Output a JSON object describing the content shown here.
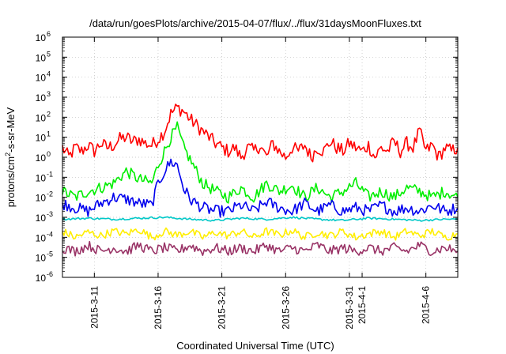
{
  "chart_data": {
    "type": "line",
    "title": "/data/run/goesPlots/archive/2015-04-07/flux/../flux/31daysMoonFluxes.txt",
    "xlabel": "Coordinated Universal Time (UTC)",
    "ylabel": {
      "base": "protons/cm",
      "sup": "2",
      "rest": "-s-sr-MeV"
    },
    "y_scale": "log",
    "ylim": [
      1e-06,
      1000000.0
    ],
    "xlim": [
      "2015-03-08T12:00",
      "2015-04-08T12:00"
    ],
    "grid": true,
    "legend": "none",
    "y_ticks": [
      {
        "value": 1e-06,
        "base": "10",
        "exp": "-6"
      },
      {
        "value": 1e-05,
        "base": "10",
        "exp": "-5"
      },
      {
        "value": 0.0001,
        "base": "10",
        "exp": "-4"
      },
      {
        "value": 0.001,
        "base": "10",
        "exp": "-3"
      },
      {
        "value": 0.01,
        "base": "10",
        "exp": "-2"
      },
      {
        "value": 0.1,
        "base": "10",
        "exp": "-1"
      },
      {
        "value": 1,
        "base": "10",
        "exp": "0"
      },
      {
        "value": 10,
        "base": "10",
        "exp": "1"
      },
      {
        "value": 100,
        "base": "10",
        "exp": "2"
      },
      {
        "value": 1000,
        "base": "10",
        "exp": "3"
      },
      {
        "value": 10000,
        "base": "10",
        "exp": "4"
      },
      {
        "value": 100000,
        "base": "10",
        "exp": "5"
      },
      {
        "value": 1000000,
        "base": "10",
        "exp": "6"
      }
    ],
    "x_ticks": [
      {
        "date": "2015-03-11",
        "label": "2015-3-11"
      },
      {
        "date": "2015-03-16",
        "label": "2015-3-16"
      },
      {
        "date": "2015-03-21",
        "label": "2015-3-21"
      },
      {
        "date": "2015-03-26",
        "label": "2015-3-26"
      },
      {
        "date": "2015-03-31",
        "label": "2015-3-31"
      },
      {
        "date": "2015-04-01",
        "label": "2015-4-1"
      },
      {
        "date": "2015-04-06",
        "label": "2015-4-6"
      }
    ],
    "series": [
      {
        "color": "#ff0000",
        "points": [
          [
            "2015-03-08T12:00",
            3
          ],
          [
            "2015-03-09T00:00",
            1
          ],
          [
            "2015-03-09T12:00",
            3
          ],
          [
            "2015-03-10T00:00",
            2
          ],
          [
            "2015-03-10T12:00",
            4
          ],
          [
            "2015-03-11T00:00",
            2
          ],
          [
            "2015-03-11T12:00",
            5
          ],
          [
            "2015-03-12T00:00",
            3
          ],
          [
            "2015-03-12T12:00",
            4
          ],
          [
            "2015-03-13T00:00",
            8
          ],
          [
            "2015-03-13T12:00",
            10
          ],
          [
            "2015-03-14T00:00",
            6
          ],
          [
            "2015-03-14T12:00",
            8
          ],
          [
            "2015-03-15T00:00",
            5
          ],
          [
            "2015-03-15T12:00",
            4
          ],
          [
            "2015-03-16T00:00",
            8
          ],
          [
            "2015-03-16T12:00",
            20
          ],
          [
            "2015-03-17T00:00",
            150
          ],
          [
            "2015-03-17T12:00",
            300
          ],
          [
            "2015-03-18T00:00",
            200
          ],
          [
            "2015-03-18T12:00",
            80
          ],
          [
            "2015-03-19T00:00",
            40
          ],
          [
            "2015-03-19T12:00",
            20
          ],
          [
            "2015-03-20T00:00",
            10
          ],
          [
            "2015-03-20T12:00",
            5
          ],
          [
            "2015-03-21T00:00",
            3
          ],
          [
            "2015-03-21T12:00",
            2
          ],
          [
            "2015-03-22T00:00",
            3
          ],
          [
            "2015-03-22T12:00",
            1
          ],
          [
            "2015-03-23T00:00",
            3
          ],
          [
            "2015-03-23T12:00",
            2
          ],
          [
            "2015-03-24T00:00",
            4
          ],
          [
            "2015-03-24T12:00",
            1
          ],
          [
            "2015-03-25T00:00",
            5
          ],
          [
            "2015-03-25T12:00",
            2
          ],
          [
            "2015-03-26T00:00",
            1
          ],
          [
            "2015-03-26T12:00",
            3
          ],
          [
            "2015-03-27T00:00",
            2
          ],
          [
            "2015-03-27T12:00",
            4
          ],
          [
            "2015-03-28T00:00",
            1
          ],
          [
            "2015-03-28T12:00",
            3
          ],
          [
            "2015-03-29T00:00",
            2
          ],
          [
            "2015-03-29T12:00",
            6
          ],
          [
            "2015-03-30T00:00",
            3
          ],
          [
            "2015-03-30T12:00",
            2
          ],
          [
            "2015-03-31T00:00",
            5
          ],
          [
            "2015-03-31T12:00",
            3
          ],
          [
            "2015-04-01T00:00",
            2
          ],
          [
            "2015-04-01T12:00",
            4
          ],
          [
            "2015-04-02T00:00",
            1
          ],
          [
            "2015-04-02T12:00",
            3
          ],
          [
            "2015-04-03T00:00",
            2
          ],
          [
            "2015-04-03T12:00",
            6
          ],
          [
            "2015-04-04T00:00",
            2
          ],
          [
            "2015-04-04T12:00",
            5
          ],
          [
            "2015-04-05T00:00",
            3
          ],
          [
            "2015-04-05T12:00",
            20
          ],
          [
            "2015-04-06T00:00",
            2
          ],
          [
            "2015-04-06T12:00",
            4
          ],
          [
            "2015-04-07T00:00",
            1
          ],
          [
            "2015-04-07T12:00",
            3
          ],
          [
            "2015-04-08T00:00",
            2
          ],
          [
            "2015-04-08T12:00",
            3
          ]
        ]
      },
      {
        "color": "#00ee00",
        "points": [
          [
            "2015-03-08T12:00",
            0.02
          ],
          [
            "2015-03-09T12:00",
            0.01
          ],
          [
            "2015-03-10T12:00",
            0.02
          ],
          [
            "2015-03-11T12:00",
            0.03
          ],
          [
            "2015-03-12T12:00",
            0.05
          ],
          [
            "2015-03-13T12:00",
            0.2
          ],
          [
            "2015-03-14T12:00",
            0.08
          ],
          [
            "2015-03-15T12:00",
            0.05
          ],
          [
            "2015-03-16T00:00",
            0.4
          ],
          [
            "2015-03-16T12:00",
            2
          ],
          [
            "2015-03-17T00:00",
            10
          ],
          [
            "2015-03-17T12:00",
            30
          ],
          [
            "2015-03-18T00:00",
            3
          ],
          [
            "2015-03-18T12:00",
            0.8
          ],
          [
            "2015-03-19T00:00",
            0.2
          ],
          [
            "2015-03-19T12:00",
            0.05
          ],
          [
            "2015-03-20T12:00",
            0.02
          ],
          [
            "2015-03-21T12:00",
            0.01
          ],
          [
            "2015-03-22T12:00",
            0.03
          ],
          [
            "2015-03-23T12:00",
            0.01
          ],
          [
            "2015-03-24T12:00",
            0.05
          ],
          [
            "2015-03-25T12:00",
            0.02
          ],
          [
            "2015-03-26T12:00",
            0.04
          ],
          [
            "2015-03-27T12:00",
            0.01
          ],
          [
            "2015-03-28T12:00",
            0.03
          ],
          [
            "2015-03-29T12:00",
            0.01
          ],
          [
            "2015-03-30T12:00",
            0.02
          ],
          [
            "2015-03-31T12:00",
            0.05
          ],
          [
            "2015-04-01T12:00",
            0.01
          ],
          [
            "2015-04-02T12:00",
            0.02
          ],
          [
            "2015-04-03T12:00",
            0.01
          ],
          [
            "2015-04-04T12:00",
            0.03
          ],
          [
            "2015-04-05T12:00",
            0.02
          ],
          [
            "2015-04-06T12:00",
            0.01
          ],
          [
            "2015-04-07T12:00",
            0.02
          ],
          [
            "2015-04-08T12:00",
            0.01
          ]
        ]
      },
      {
        "color": "#0000ee",
        "points": [
          [
            "2015-03-08T12:00",
            0.005
          ],
          [
            "2015-03-09T12:00",
            0.003
          ],
          [
            "2015-03-10T12:00",
            0.002
          ],
          [
            "2015-03-11T12:00",
            0.005
          ],
          [
            "2015-03-12T12:00",
            0.01
          ],
          [
            "2015-03-13T12:00",
            0.008
          ],
          [
            "2015-03-14T12:00",
            0.005
          ],
          [
            "2015-03-15T12:00",
            0.004
          ],
          [
            "2015-03-16T00:00",
            0.05
          ],
          [
            "2015-03-16T12:00",
            0.2
          ],
          [
            "2015-03-17T00:00",
            0.6
          ],
          [
            "2015-03-17T12:00",
            0.4
          ],
          [
            "2015-03-18T00:00",
            0.03
          ],
          [
            "2015-03-18T12:00",
            0.008
          ],
          [
            "2015-03-19T12:00",
            0.003
          ],
          [
            "2015-03-20T12:00",
            0.002
          ],
          [
            "2015-03-21T12:00",
            0.002
          ],
          [
            "2015-03-22T12:00",
            0.004
          ],
          [
            "2015-03-23T12:00",
            0.002
          ],
          [
            "2015-03-24T12:00",
            0.006
          ],
          [
            "2015-03-25T12:00",
            0.003
          ],
          [
            "2015-03-26T12:00",
            0.002
          ],
          [
            "2015-03-27T12:00",
            0.005
          ],
          [
            "2015-03-28T12:00",
            0.002
          ],
          [
            "2015-03-29T12:00",
            0.004
          ],
          [
            "2015-03-30T12:00",
            0.002
          ],
          [
            "2015-03-31T12:00",
            0.003
          ],
          [
            "2015-04-01T12:00",
            0.002
          ],
          [
            "2015-04-02T12:00",
            0.004
          ],
          [
            "2015-04-03T12:00",
            0.002
          ],
          [
            "2015-04-04T12:00",
            0.003
          ],
          [
            "2015-04-05T12:00",
            0.002
          ],
          [
            "2015-04-06T12:00",
            0.004
          ],
          [
            "2015-04-07T12:00",
            0.002
          ],
          [
            "2015-04-08T12:00",
            0.003
          ]
        ]
      },
      {
        "color": "#00c8c8",
        "points": [
          [
            "2015-03-08T12:00",
            0.0008
          ],
          [
            "2015-03-10T12:00",
            0.0009
          ],
          [
            "2015-03-12T12:00",
            0.0008
          ],
          [
            "2015-03-14T12:00",
            0.0009
          ],
          [
            "2015-03-16T12:00",
            0.001
          ],
          [
            "2015-03-18T12:00",
            0.0008
          ],
          [
            "2015-03-20T12:00",
            0.0007
          ],
          [
            "2015-03-22T12:00",
            0.0009
          ],
          [
            "2015-03-24T12:00",
            0.0008
          ],
          [
            "2015-03-26T12:00",
            0.001
          ],
          [
            "2015-03-28T12:00",
            0.0008
          ],
          [
            "2015-03-30T12:00",
            0.0007
          ],
          [
            "2015-04-01T12:00",
            0.0009
          ],
          [
            "2015-04-03T12:00",
            0.0008
          ],
          [
            "2015-04-05T12:00",
            0.0007
          ],
          [
            "2015-04-07T12:00",
            0.0008
          ],
          [
            "2015-04-08T12:00",
            0.0008
          ]
        ]
      },
      {
        "color": "#ffee00",
        "points": [
          [
            "2015-03-08T12:00",
            0.0002
          ],
          [
            "2015-03-09T12:00",
            0.0001
          ],
          [
            "2015-03-10T12:00",
            0.00018
          ],
          [
            "2015-03-11T12:00",
            0.00012
          ],
          [
            "2015-03-12T12:00",
            0.0002
          ],
          [
            "2015-03-13T12:00",
            0.00015
          ],
          [
            "2015-03-14T12:00",
            0.00025
          ],
          [
            "2015-03-15T12:00",
            0.0001
          ],
          [
            "2015-03-16T12:00",
            0.0002
          ],
          [
            "2015-03-17T12:00",
            0.00013
          ],
          [
            "2015-03-18T12:00",
            0.0002
          ],
          [
            "2015-03-19T12:00",
            0.0001
          ],
          [
            "2015-03-20T12:00",
            0.00018
          ],
          [
            "2015-03-21T12:00",
            0.00012
          ],
          [
            "2015-03-22T12:00",
            0.0002
          ],
          [
            "2015-03-23T12:00",
            0.0001
          ],
          [
            "2015-03-24T12:00",
            0.0002
          ],
          [
            "2015-03-25T12:00",
            0.00013
          ],
          [
            "2015-03-26T12:00",
            0.00022
          ],
          [
            "2015-03-27T12:00",
            0.0001
          ],
          [
            "2015-03-28T12:00",
            0.00018
          ],
          [
            "2015-03-29T12:00",
            0.00012
          ],
          [
            "2015-03-30T12:00",
            0.0002
          ],
          [
            "2015-03-31T12:00",
            0.0001
          ],
          [
            "2015-04-01T12:00",
            0.00015
          ],
          [
            "2015-04-02T12:00",
            0.0002
          ],
          [
            "2015-04-03T12:00",
            0.0001
          ],
          [
            "2015-04-04T12:00",
            0.0002
          ],
          [
            "2015-04-05T12:00",
            0.00012
          ],
          [
            "2015-04-06T12:00",
            0.0002
          ],
          [
            "2015-04-07T12:00",
            0.0001
          ],
          [
            "2015-04-08T12:00",
            0.00015
          ]
        ]
      },
      {
        "color": "#993366",
        "points": [
          [
            "2015-03-08T12:00",
            3e-05
          ],
          [
            "2015-03-09T12:00",
            2e-05
          ],
          [
            "2015-03-10T12:00",
            4e-05
          ],
          [
            "2015-03-11T12:00",
            2e-05
          ],
          [
            "2015-03-12T12:00",
            3e-05
          ],
          [
            "2015-03-13T12:00",
            2e-05
          ],
          [
            "2015-03-14T12:00",
            4e-05
          ],
          [
            "2015-03-15T12:00",
            2e-05
          ],
          [
            "2015-03-16T12:00",
            3e-05
          ],
          [
            "2015-03-17T12:00",
            2e-05
          ],
          [
            "2015-03-18T12:00",
            4e-05
          ],
          [
            "2015-03-19T12:00",
            2e-05
          ],
          [
            "2015-03-20T12:00",
            3e-05
          ],
          [
            "2015-03-21T12:00",
            2e-05
          ],
          [
            "2015-03-22T12:00",
            3e-05
          ],
          [
            "2015-03-23T12:00",
            2e-05
          ],
          [
            "2015-03-24T12:00",
            4e-05
          ],
          [
            "2015-03-25T12:00",
            2e-05
          ],
          [
            "2015-03-26T12:00",
            3e-05
          ],
          [
            "2015-03-27T12:00",
            2e-05
          ],
          [
            "2015-03-28T12:00",
            4e-05
          ],
          [
            "2015-03-29T12:00",
            2e-05
          ],
          [
            "2015-03-30T12:00",
            3e-05
          ],
          [
            "2015-03-31T12:00",
            2e-05
          ],
          [
            "2015-04-01T12:00",
            3e-05
          ],
          [
            "2015-04-02T12:00",
            2e-05
          ],
          [
            "2015-04-03T12:00",
            3e-05
          ],
          [
            "2015-04-04T12:00",
            2e-05
          ],
          [
            "2015-04-05T12:00",
            4e-05
          ],
          [
            "2015-04-06T12:00",
            2e-05
          ],
          [
            "2015-04-07T12:00",
            3e-05
          ],
          [
            "2015-04-08T12:00",
            2e-05
          ]
        ]
      }
    ]
  }
}
